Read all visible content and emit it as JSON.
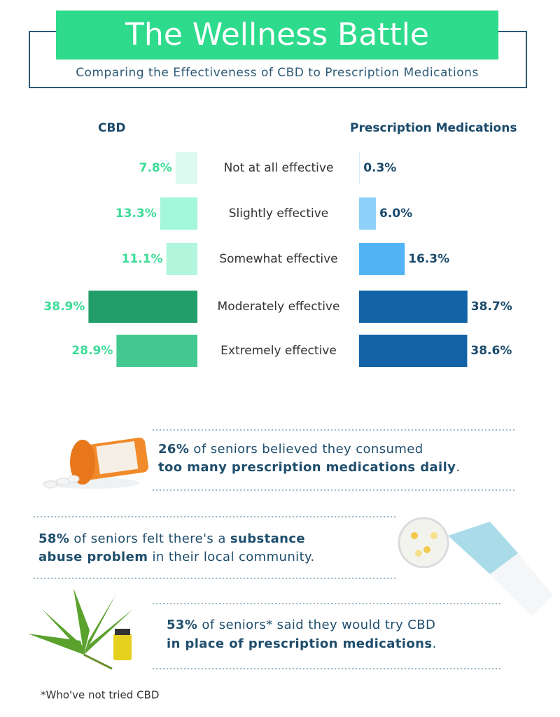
{
  "header": {
    "title": "The Wellness Battle",
    "subtitle": "Comparing the Effectiveness of CBD to Prescription Medications"
  },
  "chart_data": {
    "type": "butterfly",
    "categories": [
      "Not at all effective",
      "Slightly effective",
      "Somewhat effective",
      "Moderately effective",
      "Extremely effective"
    ],
    "series": [
      {
        "name": "CBD",
        "values": [
          7.8,
          13.3,
          11.1,
          38.9,
          28.9
        ],
        "value_labels": [
          "7.8%",
          "13.3%",
          "11.1%",
          "38.9%",
          "28.9%"
        ],
        "colors": [
          "#dcfaf0",
          "#a3f7da",
          "#b2f5dd",
          "#229e68",
          "#43c98f"
        ]
      },
      {
        "name": "Prescription Medications",
        "values": [
          0.3,
          6.0,
          16.3,
          38.7,
          38.6
        ],
        "value_labels": [
          "0.3%",
          "6.0%",
          "16.3%",
          "38.7%",
          "38.6%"
        ],
        "colors": [
          "#d9ecf8",
          "#8fd0f8",
          "#52b4f5",
          "#1162a6",
          "#1162a6"
        ]
      }
    ]
  },
  "facts": [
    {
      "lines": [
        [
          "26%",
          " of seniors believed they consumed"
        ],
        [
          "too many prescription medications daily",
          "."
        ]
      ]
    },
    {
      "lines": [
        [
          "58%",
          " of seniors felt there's a ",
          "substance"
        ],
        [
          "abuse problem",
          " in their local community."
        ]
      ]
    },
    {
      "lines": [
        [
          "53%",
          " of seniors* said they would try CBD"
        ],
        [
          "in place of prescription medications",
          "."
        ]
      ]
    }
  ],
  "footnote": "*Who've not tried CBD"
}
